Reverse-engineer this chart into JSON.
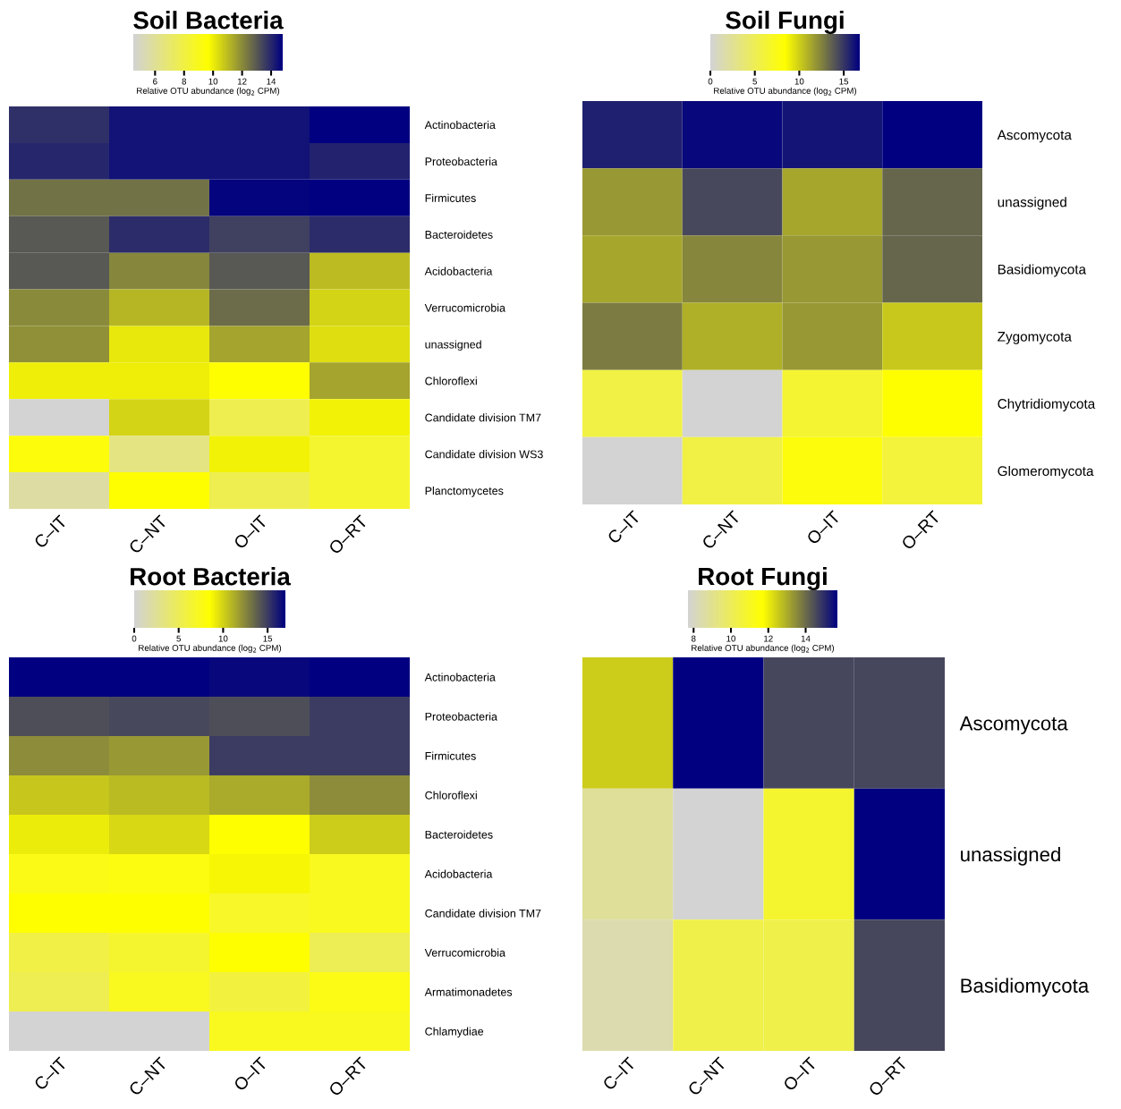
{
  "chart_data": [
    {
      "type": "heatmap",
      "title": "Soil Bacteria",
      "clabel": "Relative OTU abundance (log$_{2}$ CPM)",
      "colors": [
        "#d3d3d3",
        "#ffff00",
        "#000080"
      ],
      "clim": [
        4.5,
        14.8
      ],
      "cticks": [
        6,
        8,
        10,
        12,
        14
      ],
      "categories": [
        "C–IT",
        "C–NT",
        "O–IT",
        "O–RT"
      ],
      "y_categories": [
        "Actinobacteria",
        "Proteobacteria",
        "Firmicutes",
        "Bacteroidetes",
        "Acidobacteria",
        "Verrucomicrobia",
        "unassigned",
        "Chloroflexi",
        "Candidate division TM7",
        "Candidate division WS3",
        "Planctomycetes"
      ],
      "cells": [
        [
          13.8,
          14.4,
          14.4,
          14.8
        ],
        [
          14.0,
          14.4,
          14.4,
          14.1
        ],
        [
          12.5,
          12.5,
          14.7,
          14.8
        ],
        [
          13.0,
          13.9,
          13.5,
          13.9
        ],
        [
          13.0,
          12.1,
          13.0,
          11.0
        ],
        [
          12.0,
          11.1,
          12.6,
          10.5
        ],
        [
          11.9,
          10.1,
          11.5,
          10.3
        ],
        [
          10.0,
          10.0,
          9.65,
          11.5
        ],
        [
          4.5,
          10.5,
          7.7,
          9.9
        ],
        [
          9.4,
          6.5,
          9.9,
          8.5
        ],
        [
          5.7,
          9.65,
          7.7,
          8.5
        ]
      ]
    },
    {
      "type": "heatmap",
      "title": "Soil Fungi",
      "clabel": "Relative OTU abundance (log$_{2}$ CPM)",
      "colors": [
        "#d3d3d3",
        "#ffff00",
        "#000080"
      ],
      "clim": [
        0,
        16.8
      ],
      "cticks": [
        0,
        5,
        10,
        15
      ],
      "categories": [
        "C–IT",
        "C–NT",
        "O–IT",
        "O–RT"
      ],
      "y_categories": [
        "Ascomycota",
        "unassigned",
        "Basidiomycota",
        "Zygomycota",
        "Chytridiomycota",
        "Glomeromycota"
      ],
      "cells": [
        [
          15.7,
          16.5,
          16.1,
          16.8
        ],
        [
          11.8,
          14.4,
          11.3,
          13.4
        ],
        [
          11.3,
          12.4,
          11.8,
          13.4
        ],
        [
          12.7,
          11.0,
          11.8,
          10.2
        ],
        [
          5.7,
          0,
          6.4,
          8.4
        ],
        [
          0,
          5.7,
          7.9,
          6.1
        ]
      ]
    },
    {
      "type": "heatmap",
      "title": "Root Bacteria",
      "clabel": "Relative OTU abundance (log$_{2}$ CPM)",
      "colors": [
        "#d3d3d3",
        "#ffff00",
        "#000080"
      ],
      "clim": [
        0,
        17
      ],
      "cticks": [
        0,
        5,
        10,
        15
      ],
      "categories": [
        "C–IT",
        "C–NT",
        "O–IT",
        "O–RT"
      ],
      "y_categories": [
        "Actinobacteria",
        "Proteobacteria",
        "Firmicutes",
        "Chloroflexi",
        "Bacteroidetes",
        "Acidobacteria",
        "Candidate division TM7",
        "Verrucomicrobia",
        "Armatimonadetes",
        "Chlamydiae"
      ],
      "cells": [
        [
          17,
          17,
          16.7,
          17
        ],
        [
          14.4,
          14.6,
          14.4,
          15.0
        ],
        [
          12.3,
          11.9,
          15.0,
          15.0
        ],
        [
          10.4,
          10.8,
          11.3,
          12.3
        ],
        [
          9.1,
          9.8,
          8.5,
          10.2
        ],
        [
          7.6,
          7.9,
          8.8,
          7.3
        ],
        [
          8.5,
          8.5,
          6.9,
          7.3
        ],
        [
          5.7,
          6.6,
          8.5,
          5.1
        ],
        [
          5.2,
          7.3,
          6.0,
          7.7
        ],
        [
          0,
          0,
          7.3,
          7.3
        ]
      ]
    },
    {
      "type": "heatmap",
      "title": "Root Fungi",
      "clabel": "Relative OTU abundance (log$_{2}$ CPM)",
      "colors": [
        "#d3d3d3",
        "#ffff00",
        "#000080"
      ],
      "clim": [
        7.7,
        15.7
      ],
      "cticks": [
        8,
        10,
        12,
        14
      ],
      "categories": [
        "C–IT",
        "C–NT",
        "O–IT",
        "O–RT"
      ],
      "y_categories": [
        "Ascomycota",
        "unassigned",
        "Basidiomycota"
      ],
      "cells": [
        [
          12.5,
          15.7,
          14.6,
          14.6
        ],
        [
          8.8,
          7.7,
          10.8,
          15.7
        ],
        [
          8.4,
          10.3,
          10.3,
          14.6
        ]
      ]
    }
  ]
}
